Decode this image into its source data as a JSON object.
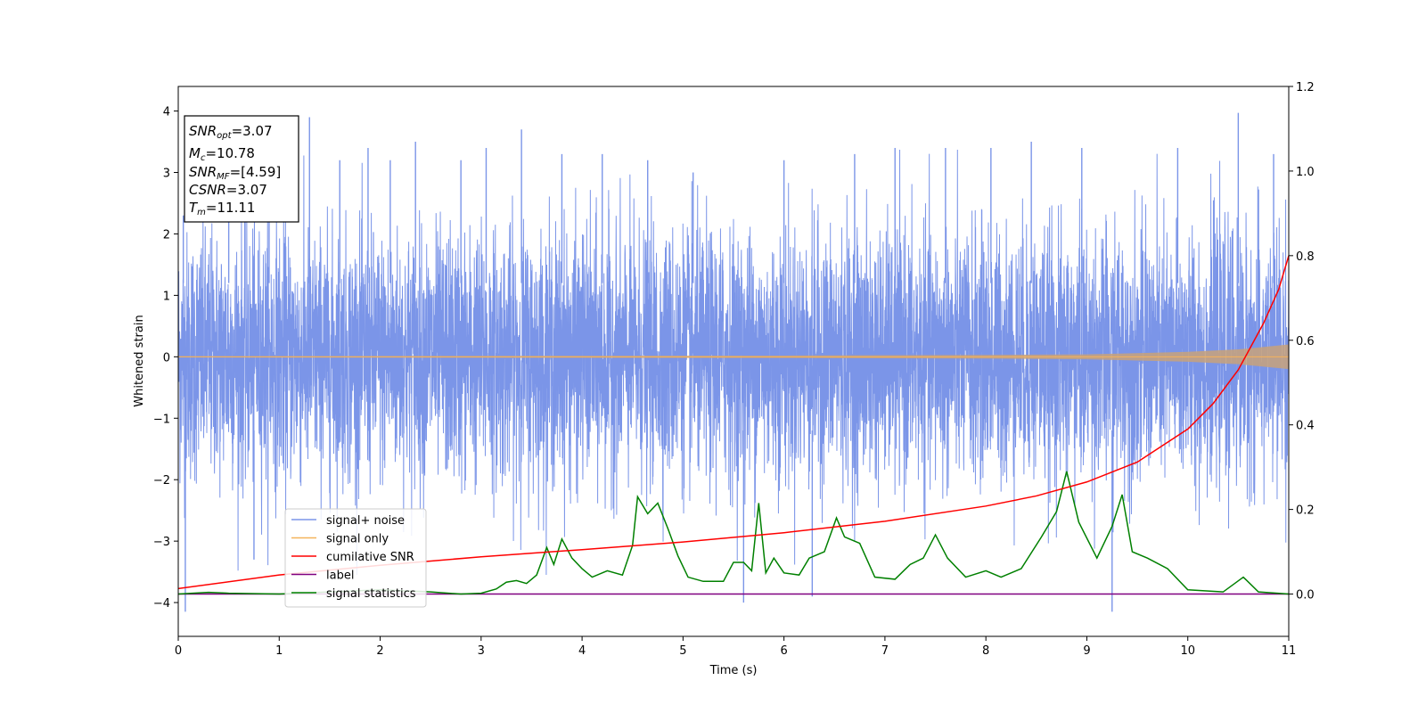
{
  "chart_data": {
    "type": "line",
    "xlabel": "Time (s)",
    "ylabel": "Whitened strain",
    "xlim": [
      0,
      11
    ],
    "ylim_left": [
      -4.55,
      4.4
    ],
    "ylim_right": [
      -0.1,
      1.2
    ],
    "x_ticks": [
      "0",
      "1",
      "2",
      "3",
      "4",
      "5",
      "6",
      "7",
      "8",
      "9",
      "10",
      "11"
    ],
    "y_left_ticks": [
      "4",
      "3",
      "2",
      "1",
      "0",
      "−1",
      "−2",
      "−3",
      "−4"
    ],
    "y_right_ticks": [
      "1.2",
      "1.0",
      "0.8",
      "0.6",
      "0.4",
      "0.2",
      "0.0"
    ],
    "grid": false,
    "legend_placement": "lower-left",
    "legend": [
      {
        "label": "signal+ noise",
        "color": "#7b95e8"
      },
      {
        "label": "signal only",
        "color": "#f5b35b"
      },
      {
        "label": "cumilative SNR",
        "color": "#ff0000"
      },
      {
        "label": "label",
        "color": "#800080"
      },
      {
        "label": "signal statistics",
        "color": "#008000"
      }
    ],
    "info_box": {
      "snr_opt_base": "SNR",
      "snr_opt_sub": "opt",
      "snr_opt_value": "=3.07",
      "mc_base": "M",
      "mc_sub": "c",
      "mc_value": "=10.78",
      "snr_mf_base": "SNR",
      "snr_mf_sub": "MF",
      "snr_mf_value": "=[4.59]",
      "csnr_base": "CSNR",
      "csnr_value": "=3.07",
      "tm_base": "T",
      "tm_sub": "m",
      "tm_value": "=11.11"
    },
    "series": [
      {
        "name": "signal+ noise",
        "axis": "left",
        "color": "#7b95e8",
        "noise_envelope": {
          "typical_abs": 1.8,
          "max": 3.97,
          "min": -4.15
        },
        "spikes": [
          {
            "x": 0.05,
            "y": 2.3
          },
          {
            "x": 0.07,
            "y": -4.15
          },
          {
            "x": 0.5,
            "y": 2.6
          },
          {
            "x": 0.75,
            "y": -3.3
          },
          {
            "x": 0.9,
            "y": 3.1
          },
          {
            "x": 1.3,
            "y": 3.9
          },
          {
            "x": 1.6,
            "y": 3.2
          },
          {
            "x": 1.88,
            "y": 3.4
          },
          {
            "x": 2.1,
            "y": 3.2
          },
          {
            "x": 2.35,
            "y": 3.5
          },
          {
            "x": 2.8,
            "y": 3.2
          },
          {
            "x": 3.05,
            "y": 3.4
          },
          {
            "x": 3.4,
            "y": 3.7
          },
          {
            "x": 3.8,
            "y": 3.3
          },
          {
            "x": 4.2,
            "y": 3.3
          },
          {
            "x": 4.65,
            "y": 3.2
          },
          {
            "x": 5.1,
            "y": 3.0
          },
          {
            "x": 5.6,
            "y": -4.0
          },
          {
            "x": 6.0,
            "y": 3.2
          },
          {
            "x": 6.28,
            "y": -3.9
          },
          {
            "x": 6.7,
            "y": 3.3
          },
          {
            "x": 7.1,
            "y": 3.4
          },
          {
            "x": 7.6,
            "y": 3.4
          },
          {
            "x": 8.05,
            "y": 3.4
          },
          {
            "x": 8.45,
            "y": 3.5
          },
          {
            "x": 8.95,
            "y": 3.4
          },
          {
            "x": 9.25,
            "y": -4.15
          },
          {
            "x": 9.9,
            "y": 3.4
          },
          {
            "x": 10.5,
            "y": 3.97
          },
          {
            "x": 10.85,
            "y": 3.3
          }
        ]
      },
      {
        "name": "signal only",
        "axis": "left",
        "color": "#f5b35b",
        "amplitude_envelope": [
          {
            "x": 0,
            "y": 0.01
          },
          {
            "x": 6,
            "y": 0.02
          },
          {
            "x": 8,
            "y": 0.03
          },
          {
            "x": 9,
            "y": 0.04
          },
          {
            "x": 9.5,
            "y": 0.06
          },
          {
            "x": 10,
            "y": 0.08
          },
          {
            "x": 10.5,
            "y": 0.12
          },
          {
            "x": 11,
            "y": 0.2
          }
        ]
      },
      {
        "name": "cumilative SNR",
        "axis": "right",
        "color": "#ff0000",
        "points": [
          {
            "x": 0,
            "y": 0.013
          },
          {
            "x": 1,
            "y": 0.045
          },
          {
            "x": 2,
            "y": 0.068
          },
          {
            "x": 3,
            "y": 0.088
          },
          {
            "x": 4,
            "y": 0.105
          },
          {
            "x": 5,
            "y": 0.123
          },
          {
            "x": 6,
            "y": 0.145
          },
          {
            "x": 7,
            "y": 0.172
          },
          {
            "x": 8,
            "y": 0.208
          },
          {
            "x": 8.5,
            "y": 0.232
          },
          {
            "x": 9,
            "y": 0.265
          },
          {
            "x": 9.5,
            "y": 0.312
          },
          {
            "x": 10,
            "y": 0.39
          },
          {
            "x": 10.25,
            "y": 0.45
          },
          {
            "x": 10.5,
            "y": 0.53
          },
          {
            "x": 10.75,
            "y": 0.64
          },
          {
            "x": 10.9,
            "y": 0.72
          },
          {
            "x": 11,
            "y": 0.8
          }
        ]
      },
      {
        "name": "label",
        "axis": "right",
        "color": "#800080",
        "points": [
          {
            "x": 0,
            "y": 0.0
          },
          {
            "x": 11,
            "y": 0.0
          }
        ]
      },
      {
        "name": "signal statistics",
        "axis": "right",
        "color": "#008000",
        "points": [
          {
            "x": 0,
            "y": 0.0
          },
          {
            "x": 0.3,
            "y": 0.004
          },
          {
            "x": 0.5,
            "y": 0.002
          },
          {
            "x": 1,
            "y": 0.0
          },
          {
            "x": 1.5,
            "y": 0.005
          },
          {
            "x": 2,
            "y": 0.01
          },
          {
            "x": 2.5,
            "y": 0.005
          },
          {
            "x": 2.8,
            "y": 0.0
          },
          {
            "x": 3,
            "y": 0.002
          },
          {
            "x": 3.15,
            "y": 0.012
          },
          {
            "x": 3.25,
            "y": 0.028
          },
          {
            "x": 3.35,
            "y": 0.032
          },
          {
            "x": 3.45,
            "y": 0.025
          },
          {
            "x": 3.55,
            "y": 0.045
          },
          {
            "x": 3.65,
            "y": 0.11
          },
          {
            "x": 3.72,
            "y": 0.07
          },
          {
            "x": 3.8,
            "y": 0.13
          },
          {
            "x": 3.9,
            "y": 0.085
          },
          {
            "x": 4.0,
            "y": 0.06
          },
          {
            "x": 4.1,
            "y": 0.04
          },
          {
            "x": 4.25,
            "y": 0.055
          },
          {
            "x": 4.4,
            "y": 0.045
          },
          {
            "x": 4.5,
            "y": 0.115
          },
          {
            "x": 4.55,
            "y": 0.23
          },
          {
            "x": 4.65,
            "y": 0.19
          },
          {
            "x": 4.75,
            "y": 0.215
          },
          {
            "x": 4.85,
            "y": 0.155
          },
          {
            "x": 4.95,
            "y": 0.09
          },
          {
            "x": 5.05,
            "y": 0.04
          },
          {
            "x": 5.2,
            "y": 0.03
          },
          {
            "x": 5.4,
            "y": 0.03
          },
          {
            "x": 5.5,
            "y": 0.075
          },
          {
            "x": 5.6,
            "y": 0.075
          },
          {
            "x": 5.68,
            "y": 0.055
          },
          {
            "x": 5.75,
            "y": 0.215
          },
          {
            "x": 5.82,
            "y": 0.05
          },
          {
            "x": 5.9,
            "y": 0.085
          },
          {
            "x": 6.0,
            "y": 0.05
          },
          {
            "x": 6.15,
            "y": 0.045
          },
          {
            "x": 6.25,
            "y": 0.085
          },
          {
            "x": 6.4,
            "y": 0.1
          },
          {
            "x": 6.52,
            "y": 0.18
          },
          {
            "x": 6.6,
            "y": 0.135
          },
          {
            "x": 6.75,
            "y": 0.12
          },
          {
            "x": 6.9,
            "y": 0.04
          },
          {
            "x": 7.1,
            "y": 0.035
          },
          {
            "x": 7.25,
            "y": 0.07
          },
          {
            "x": 7.38,
            "y": 0.085
          },
          {
            "x": 7.5,
            "y": 0.14
          },
          {
            "x": 7.62,
            "y": 0.085
          },
          {
            "x": 7.8,
            "y": 0.04
          },
          {
            "x": 8.0,
            "y": 0.055
          },
          {
            "x": 8.15,
            "y": 0.04
          },
          {
            "x": 8.35,
            "y": 0.06
          },
          {
            "x": 8.55,
            "y": 0.135
          },
          {
            "x": 8.7,
            "y": 0.195
          },
          {
            "x": 8.8,
            "y": 0.29
          },
          {
            "x": 8.92,
            "y": 0.17
          },
          {
            "x": 9.1,
            "y": 0.085
          },
          {
            "x": 9.25,
            "y": 0.16
          },
          {
            "x": 9.35,
            "y": 0.235
          },
          {
            "x": 9.45,
            "y": 0.1
          },
          {
            "x": 9.6,
            "y": 0.085
          },
          {
            "x": 9.8,
            "y": 0.06
          },
          {
            "x": 10.0,
            "y": 0.01
          },
          {
            "x": 10.35,
            "y": 0.005
          },
          {
            "x": 10.55,
            "y": 0.04
          },
          {
            "x": 10.7,
            "y": 0.005
          },
          {
            "x": 11,
            "y": 0.0
          }
        ]
      }
    ]
  }
}
